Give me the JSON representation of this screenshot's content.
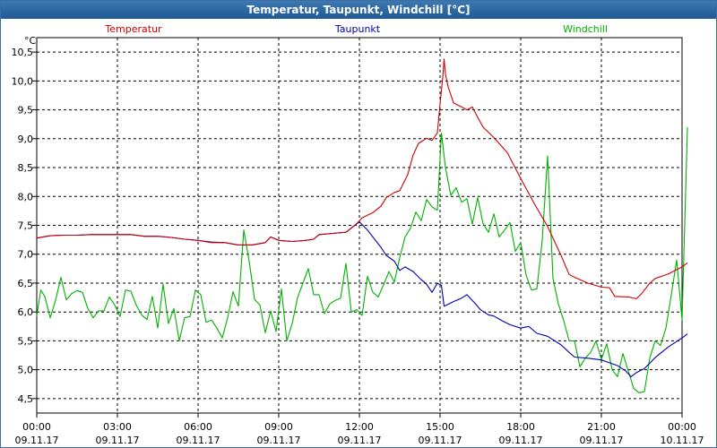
{
  "window": {
    "title": "Temperatur, Taupunkt, Windchill [°C]"
  },
  "chart_data": {
    "type": "line",
    "title": "Temperatur, Taupunkt, Windchill [°C]",
    "ylabel": "°C",
    "xlabel": "",
    "ylim": [
      4.25,
      10.75
    ],
    "xlim": [
      0,
      24
    ],
    "grid": true,
    "yticks": [
      {
        "v": 4.5,
        "label": "4,5"
      },
      {
        "v": 5.0,
        "label": "5,0"
      },
      {
        "v": 5.5,
        "label": "5,5"
      },
      {
        "v": 6.0,
        "label": "6,0"
      },
      {
        "v": 6.5,
        "label": "6,5"
      },
      {
        "v": 7.0,
        "label": "7,0"
      },
      {
        "v": 7.5,
        "label": "7,5"
      },
      {
        "v": 8.0,
        "label": "8,0"
      },
      {
        "v": 8.5,
        "label": "8,5"
      },
      {
        "v": 9.0,
        "label": "9,0"
      },
      {
        "v": 9.5,
        "label": "9,5"
      },
      {
        "v": 10.0,
        "label": "10,0"
      },
      {
        "v": 10.5,
        "label": "10,5"
      }
    ],
    "xticks": [
      {
        "v": 0,
        "time": "00:00",
        "date": "09.11.17"
      },
      {
        "v": 3,
        "time": "03:00",
        "date": "09.11.17"
      },
      {
        "v": 6,
        "time": "06:00",
        "date": "09.11.17"
      },
      {
        "v": 9,
        "time": "09:00",
        "date": "09.11.17"
      },
      {
        "v": 12,
        "time": "12:00",
        "date": "09.11.17"
      },
      {
        "v": 15,
        "time": "15:00",
        "date": "09.11.17"
      },
      {
        "v": 18,
        "time": "18:00",
        "date": "09.11.17"
      },
      {
        "v": 21,
        "time": "21:00",
        "date": "09.11.17"
      },
      {
        "v": 24,
        "time": "00:00",
        "date": "10.11.17"
      }
    ],
    "legend_placement": "top",
    "series": [
      {
        "name": "Temperatur",
        "color": "#cc0000",
        "points": [
          [
            0,
            7.28
          ],
          [
            0.5,
            7.32
          ],
          [
            1,
            7.33
          ],
          [
            1.5,
            7.33
          ],
          [
            2,
            7.34
          ],
          [
            2.5,
            7.34
          ],
          [
            3,
            7.34
          ],
          [
            3.5,
            7.34
          ],
          [
            4,
            7.31
          ],
          [
            4.5,
            7.31
          ],
          [
            5,
            7.29
          ],
          [
            5.5,
            7.26
          ],
          [
            6,
            7.24
          ],
          [
            6.5,
            7.2
          ],
          [
            7,
            7.2
          ],
          [
            7.5,
            7.16
          ],
          [
            8,
            7.16
          ],
          [
            8.5,
            7.2
          ],
          [
            8.7,
            7.3
          ],
          [
            9,
            7.24
          ],
          [
            9.5,
            7.22
          ],
          [
            10,
            7.24
          ],
          [
            10.3,
            7.26
          ],
          [
            10.5,
            7.34
          ],
          [
            11,
            7.36
          ],
          [
            11.5,
            7.38
          ],
          [
            11.9,
            7.53
          ],
          [
            12.1,
            7.63
          ],
          [
            12.5,
            7.72
          ],
          [
            12.8,
            7.83
          ],
          [
            13,
            7.98
          ],
          [
            13.3,
            8.07
          ],
          [
            13.5,
            8.1
          ],
          [
            13.8,
            8.38
          ],
          [
            14,
            8.72
          ],
          [
            14.2,
            8.92
          ],
          [
            14.5,
            9.01
          ],
          [
            14.7,
            8.97
          ],
          [
            14.9,
            9.1
          ],
          [
            15,
            9.6
          ],
          [
            15.1,
            10.06
          ],
          [
            15.15,
            10.38
          ],
          [
            15.2,
            10.12
          ],
          [
            15.3,
            9.9
          ],
          [
            15.5,
            9.62
          ],
          [
            15.8,
            9.55
          ],
          [
            16,
            9.5
          ],
          [
            16.2,
            9.55
          ],
          [
            16.4,
            9.37
          ],
          [
            16.6,
            9.2
          ],
          [
            17,
            9.02
          ],
          [
            17.5,
            8.76
          ],
          [
            18,
            8.31
          ],
          [
            18.5,
            7.88
          ],
          [
            19,
            7.48
          ],
          [
            19.5,
            6.98
          ],
          [
            19.8,
            6.65
          ],
          [
            20,
            6.6
          ],
          [
            20.5,
            6.5
          ],
          [
            21,
            6.43
          ],
          [
            21.3,
            6.42
          ],
          [
            21.5,
            6.27
          ],
          [
            22,
            6.26
          ],
          [
            22.3,
            6.23
          ],
          [
            22.5,
            6.32
          ],
          [
            22.8,
            6.5
          ],
          [
            23,
            6.58
          ],
          [
            23.5,
            6.66
          ],
          [
            24,
            6.78
          ],
          [
            24.2,
            6.85
          ]
        ]
      },
      {
        "name": "Taupunkt",
        "color": "#0000aa",
        "points": [
          [
            0,
            7.28
          ],
          [
            0.5,
            7.32
          ],
          [
            1,
            7.33
          ],
          [
            1.5,
            7.33
          ],
          [
            2,
            7.34
          ],
          [
            2.5,
            7.34
          ],
          [
            3,
            7.34
          ],
          [
            3.5,
            7.34
          ],
          [
            4,
            7.31
          ],
          [
            4.5,
            7.31
          ],
          [
            5,
            7.29
          ],
          [
            5.5,
            7.26
          ],
          [
            6,
            7.24
          ],
          [
            6.5,
            7.21
          ],
          [
            7,
            7.2
          ],
          [
            7.5,
            7.16
          ],
          [
            8,
            7.16
          ],
          [
            8.5,
            7.2
          ],
          [
            8.7,
            7.3
          ],
          [
            9,
            7.24
          ],
          [
            9.5,
            7.22
          ],
          [
            10,
            7.24
          ],
          [
            10.3,
            7.26
          ],
          [
            10.5,
            7.34
          ],
          [
            11,
            7.36
          ],
          [
            11.5,
            7.38
          ],
          [
            12,
            7.56
          ],
          [
            12.3,
            7.42
          ],
          [
            12.8,
            7.12
          ],
          [
            13,
            6.98
          ],
          [
            13.3,
            6.88
          ],
          [
            13.5,
            6.72
          ],
          [
            13.7,
            6.78
          ],
          [
            14,
            6.7
          ],
          [
            14.3,
            6.56
          ],
          [
            14.5,
            6.48
          ],
          [
            14.7,
            6.34
          ],
          [
            14.9,
            6.5
          ],
          [
            15.05,
            6.46
          ],
          [
            15.15,
            6.1
          ],
          [
            15.5,
            6.18
          ],
          [
            15.8,
            6.24
          ],
          [
            16,
            6.3
          ],
          [
            16.3,
            6.15
          ],
          [
            16.5,
            6.04
          ],
          [
            16.8,
            5.95
          ],
          [
            17,
            5.93
          ],
          [
            17.3,
            5.85
          ],
          [
            17.6,
            5.78
          ],
          [
            18,
            5.72
          ],
          [
            18.3,
            5.75
          ],
          [
            18.6,
            5.63
          ],
          [
            19,
            5.58
          ],
          [
            19.5,
            5.43
          ],
          [
            19.8,
            5.3
          ],
          [
            20,
            5.22
          ],
          [
            20.5,
            5.2
          ],
          [
            21,
            5.17
          ],
          [
            21.3,
            5.12
          ],
          [
            21.6,
            5.07
          ],
          [
            21.9,
            4.98
          ],
          [
            22.1,
            4.88
          ],
          [
            22.3,
            4.95
          ],
          [
            22.6,
            5.02
          ],
          [
            23,
            5.21
          ],
          [
            23.5,
            5.4
          ],
          [
            24,
            5.55
          ],
          [
            24.2,
            5.62
          ]
        ]
      },
      {
        "name": "Windchill",
        "color": "#00b000",
        "points": [
          [
            0,
            5.93
          ],
          [
            0.15,
            6.38
          ],
          [
            0.3,
            6.27
          ],
          [
            0.5,
            5.9
          ],
          [
            0.7,
            6.2
          ],
          [
            0.9,
            6.6
          ],
          [
            1.1,
            6.21
          ],
          [
            1.3,
            6.32
          ],
          [
            1.5,
            6.37
          ],
          [
            1.7,
            6.34
          ],
          [
            1.9,
            6.06
          ],
          [
            2.1,
            5.9
          ],
          [
            2.3,
            6.02
          ],
          [
            2.5,
            6.02
          ],
          [
            2.7,
            6.26
          ],
          [
            2.9,
            6.12
          ],
          [
            3.1,
            5.92
          ],
          [
            3.3,
            6.38
          ],
          [
            3.5,
            6.36
          ],
          [
            3.7,
            6.12
          ],
          [
            3.9,
            5.95
          ],
          [
            4.1,
            5.87
          ],
          [
            4.3,
            6.27
          ],
          [
            4.5,
            5.72
          ],
          [
            4.7,
            6.48
          ],
          [
            4.9,
            5.8
          ],
          [
            5.1,
            6.06
          ],
          [
            5.3,
            5.5
          ],
          [
            5.5,
            5.9
          ],
          [
            5.7,
            5.92
          ],
          [
            5.9,
            6.38
          ],
          [
            6.1,
            6.3
          ],
          [
            6.3,
            5.82
          ],
          [
            6.5,
            5.86
          ],
          [
            6.7,
            5.72
          ],
          [
            6.9,
            5.55
          ],
          [
            7.1,
            5.9
          ],
          [
            7.3,
            6.35
          ],
          [
            7.5,
            6.1
          ],
          [
            7.7,
            7.42
          ],
          [
            7.9,
            6.88
          ],
          [
            8.1,
            6.22
          ],
          [
            8.3,
            6.12
          ],
          [
            8.5,
            5.64
          ],
          [
            8.7,
            6.02
          ],
          [
            8.9,
            5.66
          ],
          [
            9.1,
            6.4
          ],
          [
            9.3,
            5.5
          ],
          [
            9.5,
            5.8
          ],
          [
            9.7,
            6.25
          ],
          [
            9.9,
            6.5
          ],
          [
            10.1,
            6.75
          ],
          [
            10.3,
            6.3
          ],
          [
            10.5,
            6.3
          ],
          [
            10.7,
            5.97
          ],
          [
            10.9,
            6.14
          ],
          [
            11.1,
            6.2
          ],
          [
            11.3,
            6.24
          ],
          [
            11.5,
            6.84
          ],
          [
            11.7,
            6.0
          ],
          [
            11.9,
            6.04
          ],
          [
            12.1,
            5.94
          ],
          [
            12.3,
            6.62
          ],
          [
            12.5,
            6.34
          ],
          [
            12.7,
            6.26
          ],
          [
            12.9,
            6.47
          ],
          [
            13.1,
            6.7
          ],
          [
            13.3,
            6.52
          ],
          [
            13.5,
            6.94
          ],
          [
            13.7,
            7.3
          ],
          [
            13.9,
            7.45
          ],
          [
            14.1,
            7.73
          ],
          [
            14.3,
            7.58
          ],
          [
            14.5,
            7.95
          ],
          [
            14.7,
            7.82
          ],
          [
            14.9,
            7.76
          ],
          [
            15.05,
            9.1
          ],
          [
            15.2,
            8.5
          ],
          [
            15.4,
            8.02
          ],
          [
            15.6,
            8.15
          ],
          [
            15.8,
            7.9
          ],
          [
            16,
            7.96
          ],
          [
            16.2,
            7.52
          ],
          [
            16.4,
            7.98
          ],
          [
            16.6,
            7.53
          ],
          [
            16.8,
            7.38
          ],
          [
            17,
            7.7
          ],
          [
            17.2,
            7.3
          ],
          [
            17.4,
            7.42
          ],
          [
            17.6,
            7.55
          ],
          [
            17.8,
            7.05
          ],
          [
            18,
            7.2
          ],
          [
            18.2,
            6.64
          ],
          [
            18.4,
            6.38
          ],
          [
            18.6,
            6.4
          ],
          [
            18.8,
            7.24
          ],
          [
            19,
            8.7
          ],
          [
            19.2,
            6.58
          ],
          [
            19.4,
            6.14
          ],
          [
            19.6,
            5.85
          ],
          [
            19.8,
            5.5
          ],
          [
            20,
            5.5
          ],
          [
            20.2,
            5.05
          ],
          [
            20.4,
            5.2
          ],
          [
            20.6,
            5.3
          ],
          [
            20.8,
            5.5
          ],
          [
            21,
            5.18
          ],
          [
            21.2,
            5.45
          ],
          [
            21.4,
            5.0
          ],
          [
            21.6,
            4.88
          ],
          [
            21.8,
            5.28
          ],
          [
            22,
            4.98
          ],
          [
            22.2,
            4.68
          ],
          [
            22.4,
            4.6
          ],
          [
            22.6,
            4.62
          ],
          [
            22.8,
            5.2
          ],
          [
            23,
            5.5
          ],
          [
            23.2,
            5.42
          ],
          [
            23.4,
            5.72
          ],
          [
            23.6,
            6.3
          ],
          [
            23.8,
            6.9
          ],
          [
            24,
            5.86
          ],
          [
            24.2,
            9.2
          ]
        ]
      }
    ]
  }
}
